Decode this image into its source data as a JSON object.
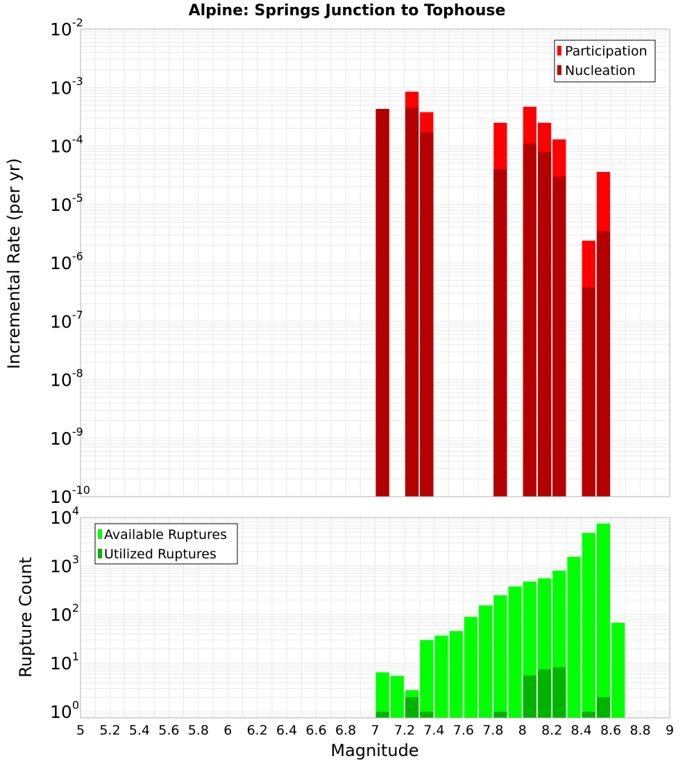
{
  "title": "Alpine: Springs Junction to Tophouse",
  "xlabel": "Magnitude",
  "x_ticks": [
    "5",
    "5.2",
    "5.4",
    "5.6",
    "5.8",
    "6",
    "6.2",
    "6.4",
    "6.6",
    "6.8",
    "7",
    "7.2",
    "7.4",
    "7.6",
    "7.8",
    "8",
    "8.2",
    "8.4",
    "8.6",
    "8.8",
    "9"
  ],
  "colors": {
    "participation": "#ff0000",
    "nucleation": "#b30000",
    "available": "#00ff00",
    "utilized": "#00b300",
    "grid": "#e8e8e8",
    "frame": "#b0b0b0"
  },
  "chart_data": [
    {
      "type": "bar",
      "title": "Alpine: Springs Junction to Tophouse",
      "ylabel": "Incremental Rate (per yr)",
      "xlabel": "Magnitude",
      "log_y": true,
      "xlim": [
        5,
        9
      ],
      "ylim": [
        1e-10,
        0.01
      ],
      "y_ticks": [
        {
          "base": "10",
          "exp": "-10"
        },
        {
          "base": "10",
          "exp": "-9"
        },
        {
          "base": "10",
          "exp": "-8"
        },
        {
          "base": "10",
          "exp": "-7"
        },
        {
          "base": "10",
          "exp": "-6"
        },
        {
          "base": "10",
          "exp": "-5"
        },
        {
          "base": "10",
          "exp": "-4"
        },
        {
          "base": "10",
          "exp": "-3"
        },
        {
          "base": "10",
          "exp": "-2"
        }
      ],
      "legend": [
        "Participation",
        "Nucleation"
      ],
      "legend_position": "top-right",
      "grid": true,
      "x": [
        7.05,
        7.25,
        7.35,
        7.85,
        8.05,
        8.15,
        8.25,
        8.45,
        8.55
      ],
      "series": [
        {
          "name": "Participation",
          "values": [
            0.00043,
            0.00085,
            0.00038,
            0.00025,
            0.00047,
            0.00025,
            0.00013,
            2.4e-06,
            3.6e-05
          ]
        },
        {
          "name": "Nucleation",
          "values": [
            0.00043,
            0.00045,
            0.00017,
            4e-05,
            0.00011,
            8e-05,
            3e-05,
            3.8e-07,
            3.5e-06
          ]
        }
      ]
    },
    {
      "type": "bar",
      "ylabel": "Rupture Count",
      "xlabel": "Magnitude",
      "log_y": true,
      "xlim": [
        5,
        9
      ],
      "ylim": [
        0.75,
        10000
      ],
      "y_ticks": [
        {
          "base": "10",
          "exp": "0",
          "value": 1
        },
        {
          "base": "10",
          "exp": "1",
          "value": 10
        },
        {
          "base": "10",
          "exp": "2",
          "value": 100
        },
        {
          "base": "10",
          "exp": "3",
          "value": 1000
        },
        {
          "base": "10",
          "exp": "4",
          "value": 10000
        }
      ],
      "legend": [
        "Available Ruptures",
        "Utilized Ruptures"
      ],
      "legend_position": "top-left",
      "grid": true,
      "x": [
        7.05,
        7.15,
        7.25,
        7.35,
        7.45,
        7.55,
        7.65,
        7.75,
        7.85,
        7.95,
        8.05,
        8.15,
        8.25,
        8.35,
        8.45,
        8.55,
        8.65
      ],
      "series": [
        {
          "name": "Available Ruptures",
          "values": [
            6.5,
            5.5,
            2.8,
            30,
            37,
            46,
            90,
            155,
            250,
            380,
            480,
            560,
            800,
            1550,
            4800,
            7500,
            68
          ]
        },
        {
          "name": "Utilized Ruptures",
          "values": [
            1,
            0,
            2,
            1,
            0,
            0,
            0,
            0,
            1,
            0,
            5.6,
            7.5,
            8.3,
            0,
            1,
            2,
            0
          ]
        }
      ]
    }
  ]
}
